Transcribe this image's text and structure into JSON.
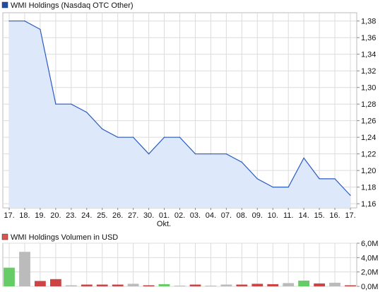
{
  "price_chart": {
    "legend_label": "WMI Holdings (Nasdaq OTC Other)",
    "legend_color": "#1f4ea8",
    "line_color": "#2a5bbf",
    "fill_color": "#dde8fb",
    "grid_color": "#dcdcdc",
    "yticks": [
      "1,38",
      "1,36",
      "1,34",
      "1,32",
      "1,30",
      "1,28",
      "1,26",
      "1,24",
      "1,22",
      "1,20",
      "1,18",
      "1,16"
    ],
    "xticks": [
      "17.",
      "18.",
      "19.",
      "20.",
      "23.",
      "24.",
      "25.",
      "26.",
      "27.",
      "30.",
      "01.",
      "02.",
      "03.",
      "04.",
      "07.",
      "08.",
      "09.",
      "10.",
      "11.",
      "14.",
      "15.",
      "16.",
      "17."
    ],
    "month_label": "Okt."
  },
  "volume_chart": {
    "legend_label": "WMI Holdings Volumen in USD",
    "legend_color": "#d9534f",
    "yticks": [
      "6,0M",
      "4,0M",
      "2,0M",
      "0,0M"
    ]
  },
  "chart_data": [
    {
      "type": "area",
      "title": "WMI Holdings (Nasdaq OTC Other)",
      "categories": [
        "17.",
        "18.",
        "19.",
        "20.",
        "23.",
        "24.",
        "25.",
        "26.",
        "27.",
        "30.",
        "01.",
        "02.",
        "03.",
        "04.",
        "07.",
        "08.",
        "09.",
        "10.",
        "11.",
        "14.",
        "15.",
        "16.",
        "17."
      ],
      "series": [
        {
          "name": "WMI Holdings (Nasdaq OTC Other)",
          "values": [
            1.38,
            1.38,
            1.37,
            1.28,
            1.28,
            1.27,
            1.25,
            1.24,
            1.24,
            1.22,
            1.24,
            1.24,
            1.22,
            1.22,
            1.22,
            1.21,
            1.19,
            1.18,
            1.18,
            1.215,
            1.19,
            1.19,
            1.17
          ]
        }
      ],
      "ylim": [
        1.155,
        1.39
      ],
      "grid": true
    },
    {
      "type": "bar",
      "title": "WMI Holdings Volumen in USD",
      "categories": [
        "17.",
        "18.",
        "19.",
        "20.",
        "23.",
        "24.",
        "25.",
        "26.",
        "27.",
        "30.",
        "01.",
        "02.",
        "03.",
        "04.",
        "07.",
        "08.",
        "09.",
        "10.",
        "11.",
        "14.",
        "15.",
        "16.",
        "17."
      ],
      "series": [
        {
          "name": "WMI Holdings Volumen in USD",
          "values": [
            2.6,
            4.8,
            0.75,
            1.0,
            0.15,
            0.25,
            0.25,
            0.25,
            0.35,
            0.15,
            0.3,
            0.1,
            0.25,
            0.1,
            0.25,
            0.25,
            0.35,
            0.3,
            0.45,
            0.8,
            0.4,
            0.5,
            0.15
          ],
          "colors": [
            "#66cc66",
            "#bbbbbb",
            "#cc4444",
            "#cc4444",
            "#bbbbbb",
            "#cc4444",
            "#cc4444",
            "#cc4444",
            "#bbbbbb",
            "#cc4444",
            "#66cc66",
            "#bbbbbb",
            "#cc4444",
            "#bbbbbb",
            "#bbbbbb",
            "#cc4444",
            "#cc4444",
            "#cc4444",
            "#bbbbbb",
            "#66cc66",
            "#cc4444",
            "#bbbbbb",
            "#cc4444"
          ]
        }
      ],
      "ylim": [
        0,
        6.0
      ],
      "grid": true
    }
  ]
}
